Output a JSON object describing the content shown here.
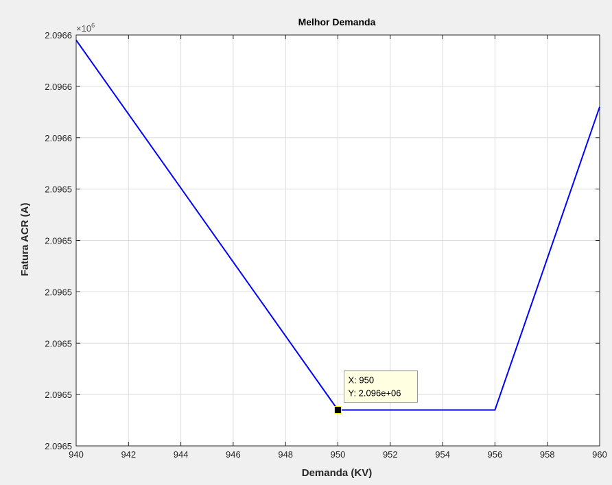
{
  "chart_data": {
    "type": "line",
    "title": "Melhor Demanda",
    "xlabel": "Demanda (KV)",
    "ylabel": "Fatura ACR (A)",
    "y_exponent_base": "×10",
    "y_exponent_power": "6",
    "xlim": [
      940,
      960
    ],
    "ylim": [
      2.09648,
      2.09664
    ],
    "x_ticks": [
      940,
      942,
      944,
      946,
      948,
      950,
      952,
      954,
      956,
      958,
      960
    ],
    "x_tick_labels": [
      "940",
      "942",
      "944",
      "946",
      "948",
      "950",
      "952",
      "954",
      "956",
      "958",
      "960"
    ],
    "y_ticks": [
      2.09648,
      2.0965,
      2.09652,
      2.09654,
      2.09656,
      2.09658,
      2.0966,
      2.09662,
      2.09664
    ],
    "y_tick_labels": [
      "2.0965",
      "2.0965",
      "2.0965",
      "2.0965",
      "2.0965",
      "2.0965",
      "2.0966",
      "2.0966",
      "2.0966"
    ],
    "grid": true,
    "series": [
      {
        "color": "#0000ff",
        "x": [
          940,
          950,
          956,
          960
        ],
        "y": [
          2.096638,
          2.096494,
          2.096494,
          2.096612
        ]
      }
    ],
    "datatip": {
      "x": 950,
      "y": 2.096494,
      "line1": "X: 950",
      "line2": "Y: 2.096e+06"
    }
  }
}
